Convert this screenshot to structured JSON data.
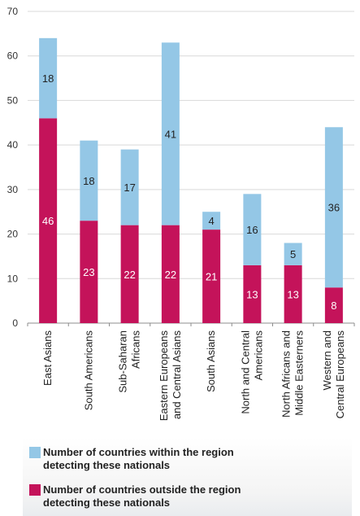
{
  "chart_data": {
    "type": "bar",
    "stacked": true,
    "categories": [
      "East Asians",
      "South Americans",
      "Sub-Saharan Africans",
      "Eastern Europeans and Central Asians",
      "South Asians",
      "North and Central Americans",
      "North Africans and Middle Easterners",
      "Western and Central Europeans"
    ],
    "category_labels": [
      [
        "East Asians"
      ],
      [
        "South Americans"
      ],
      [
        "Sub-Saharan",
        "Africans"
      ],
      [
        "Eastern Europeans",
        "and Central Asians"
      ],
      [
        "South Asians"
      ],
      [
        "North and Central",
        "Americans"
      ],
      [
        "North Africans and",
        "Middle Easterners"
      ],
      [
        "Western and",
        "Central Europeans"
      ]
    ],
    "series": [
      {
        "name": "Number of countries outside the region detecting these nationals",
        "values": [
          46,
          23,
          22,
          22,
          21,
          13,
          13,
          8
        ],
        "color": "#c4135a"
      },
      {
        "name": "Number of countries within the region detecting these nationals",
        "values": [
          18,
          18,
          17,
          41,
          4,
          16,
          5,
          36
        ],
        "color": "#94c7e6"
      }
    ],
    "ylim": [
      0,
      70
    ],
    "yticks": [
      0,
      10,
      20,
      30,
      40,
      50,
      60,
      70
    ],
    "grid": true,
    "legend_position": "bottom"
  },
  "legend": {
    "items": [
      {
        "label": "Number of countries within the region\ndetecting these nationals",
        "color": "#94c7e6"
      },
      {
        "label": "Number of countries outside the region\ndetecting these nationals",
        "color": "#c4135a"
      }
    ]
  }
}
